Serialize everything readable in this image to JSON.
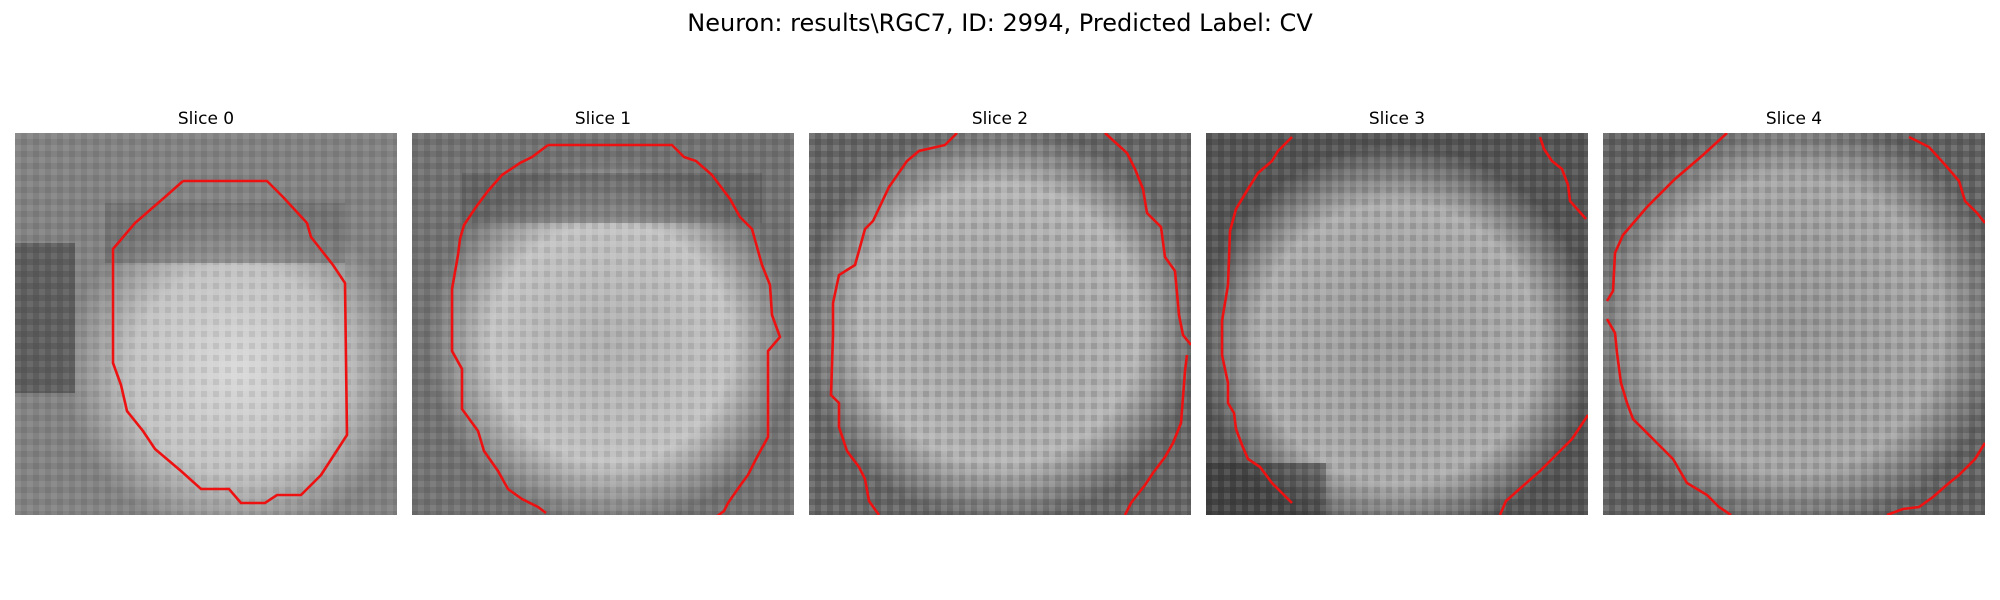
{
  "figure": {
    "title": "Neuron: results\\RGC7, ID: 2994, Predicted Label: CV"
  },
  "slices": [
    {
      "title": "Slice 0"
    },
    {
      "title": "Slice 1"
    },
    {
      "title": "Slice 2"
    },
    {
      "title": "Slice 3"
    },
    {
      "title": "Slice 4"
    }
  ],
  "colors": {
    "contour": "#ee1111",
    "background": "#ffffff"
  }
}
